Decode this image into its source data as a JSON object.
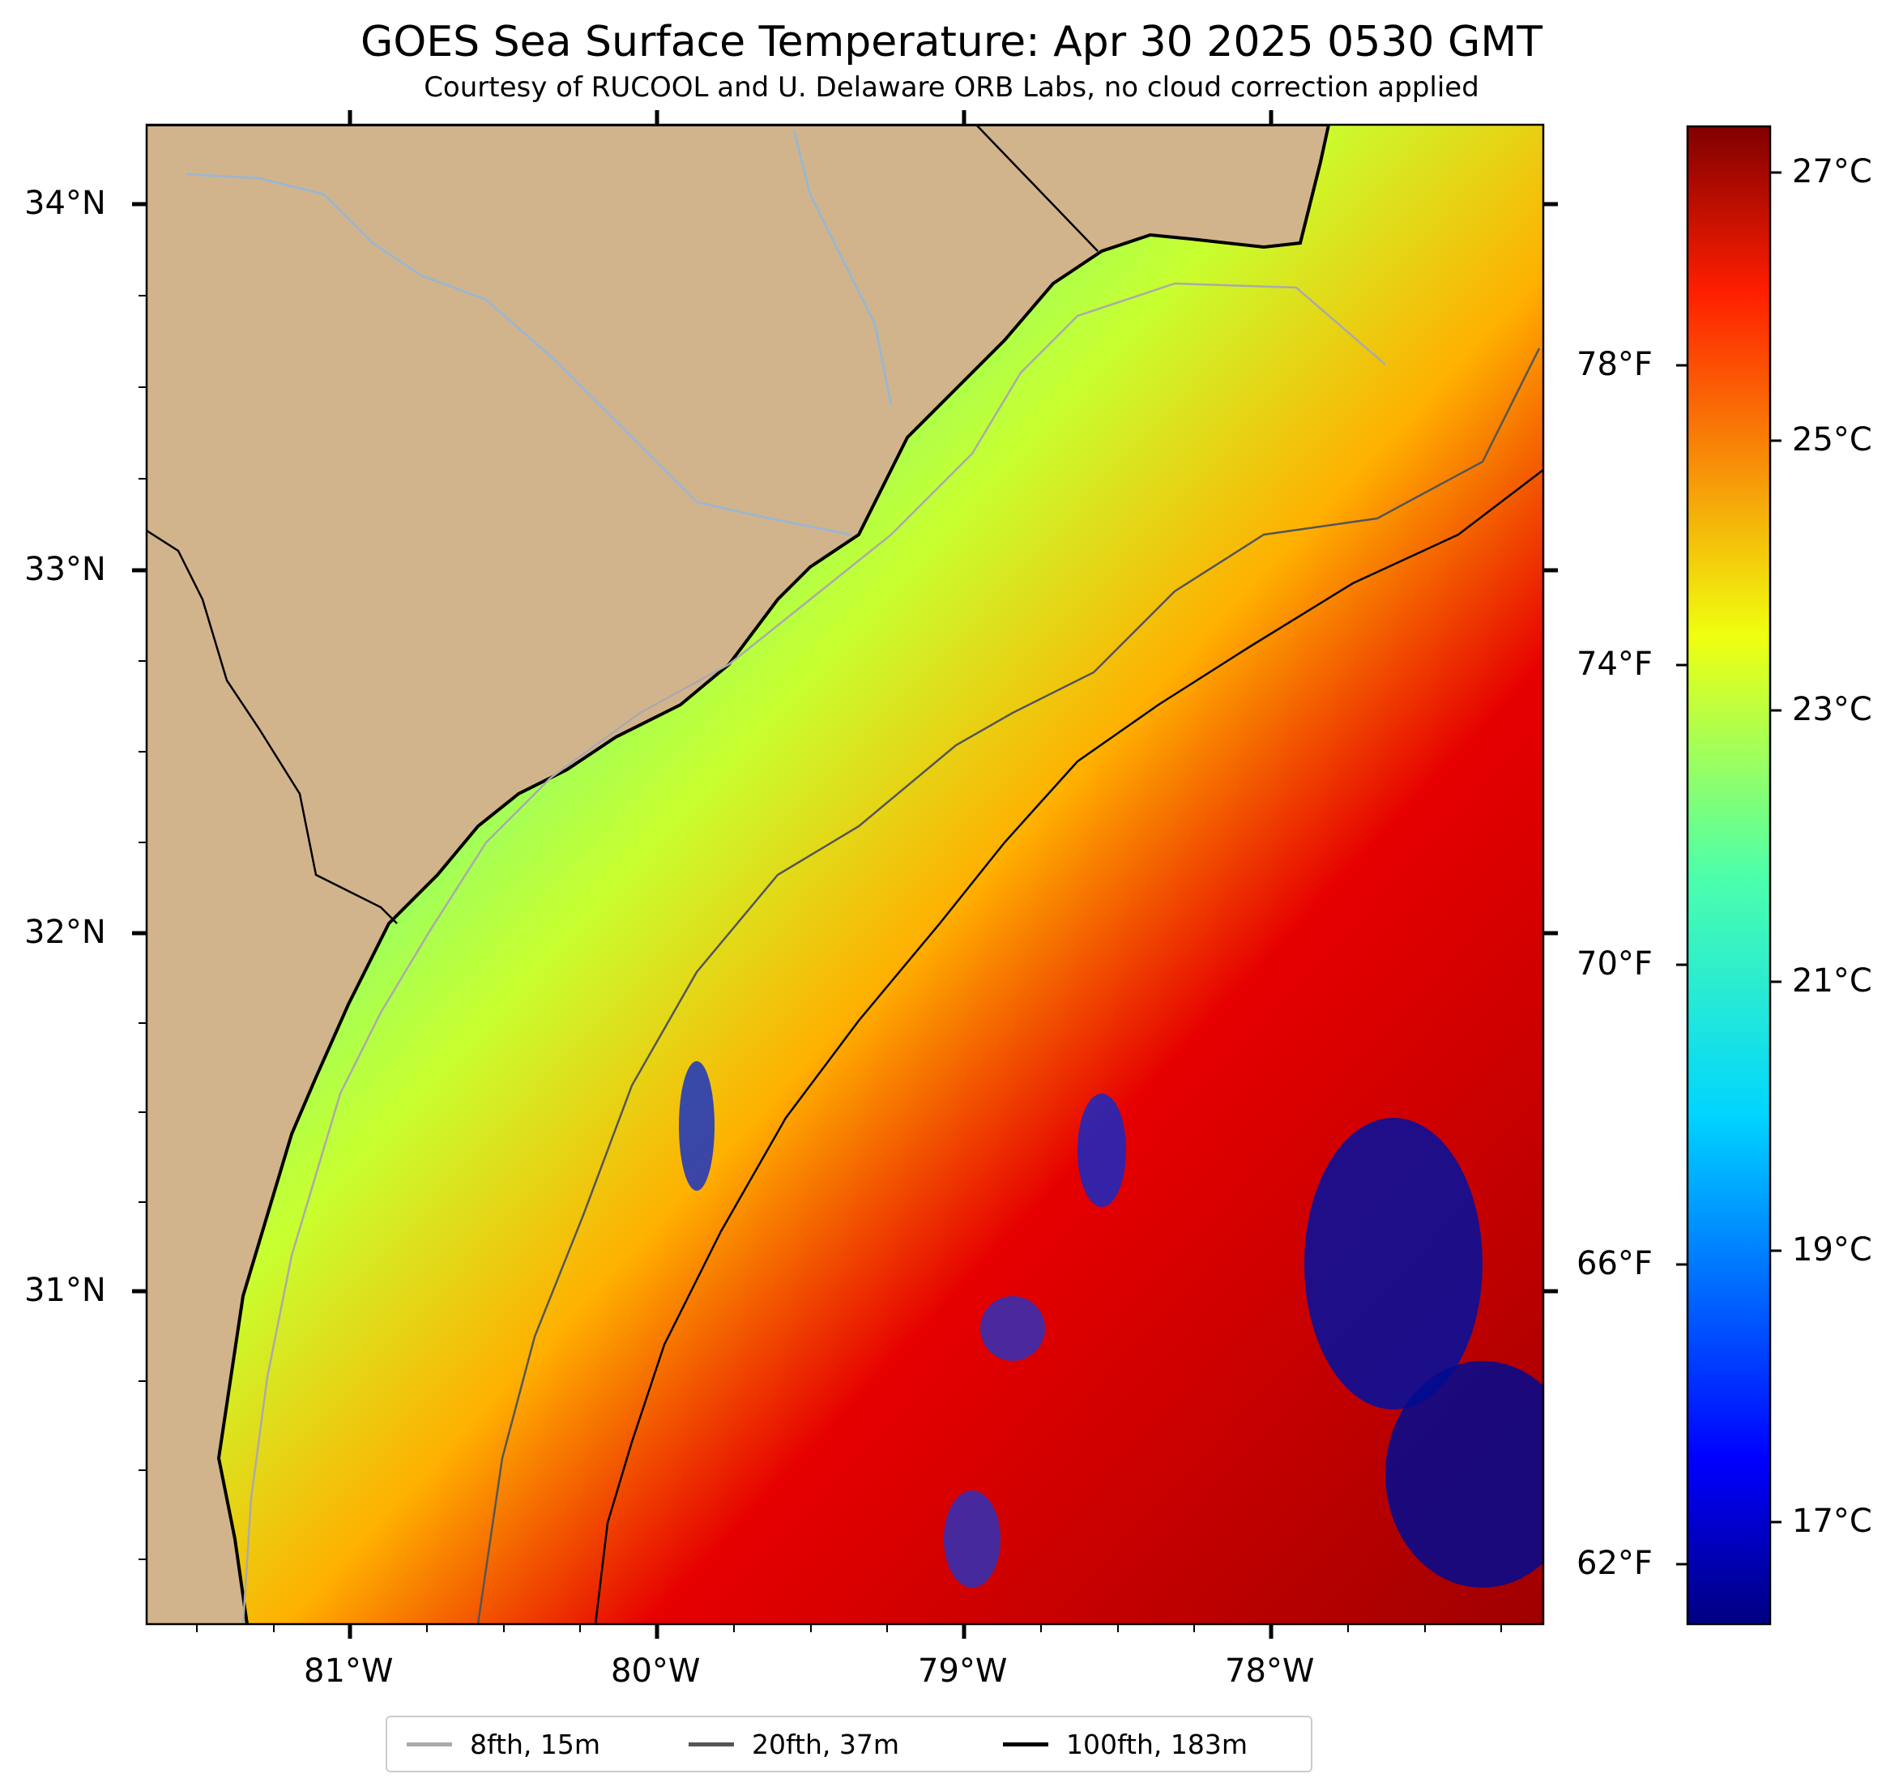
{
  "title": "GOES Sea Surface Temperature: Apr 30 2025 0530 GMT",
  "subtitle": "Courtesy of RUCOOL and U. Delaware ORB Labs, no cloud correction applied",
  "map": {
    "longitude_labels": [
      "81°W",
      "80°W",
      "79°W",
      "78°W"
    ],
    "latitude_labels": [
      "34°N",
      "33°N",
      "32°N",
      "31°N"
    ],
    "land_color": "#d2b48c",
    "coastline_color": "#000000",
    "river_color": "#9fb6cd",
    "water_body_label_visible": false
  },
  "colorbar": {
    "colormap": "jet",
    "celsius_labels": [
      "27°C",
      "25°C",
      "23°C",
      "21°C",
      "19°C",
      "17°C"
    ],
    "fahrenheit_labels": [
      "78°F",
      "74°F",
      "70°F",
      "66°F",
      "62°F"
    ],
    "celsius_range": [
      16.2,
      27.5
    ]
  },
  "legend": {
    "items": [
      {
        "label": "8fth, 15m",
        "color": "#aaaaaa"
      },
      {
        "label": "20fth, 37m",
        "color": "#555555"
      },
      {
        "label": "100fth, 183m",
        "color": "#000000"
      }
    ]
  }
}
